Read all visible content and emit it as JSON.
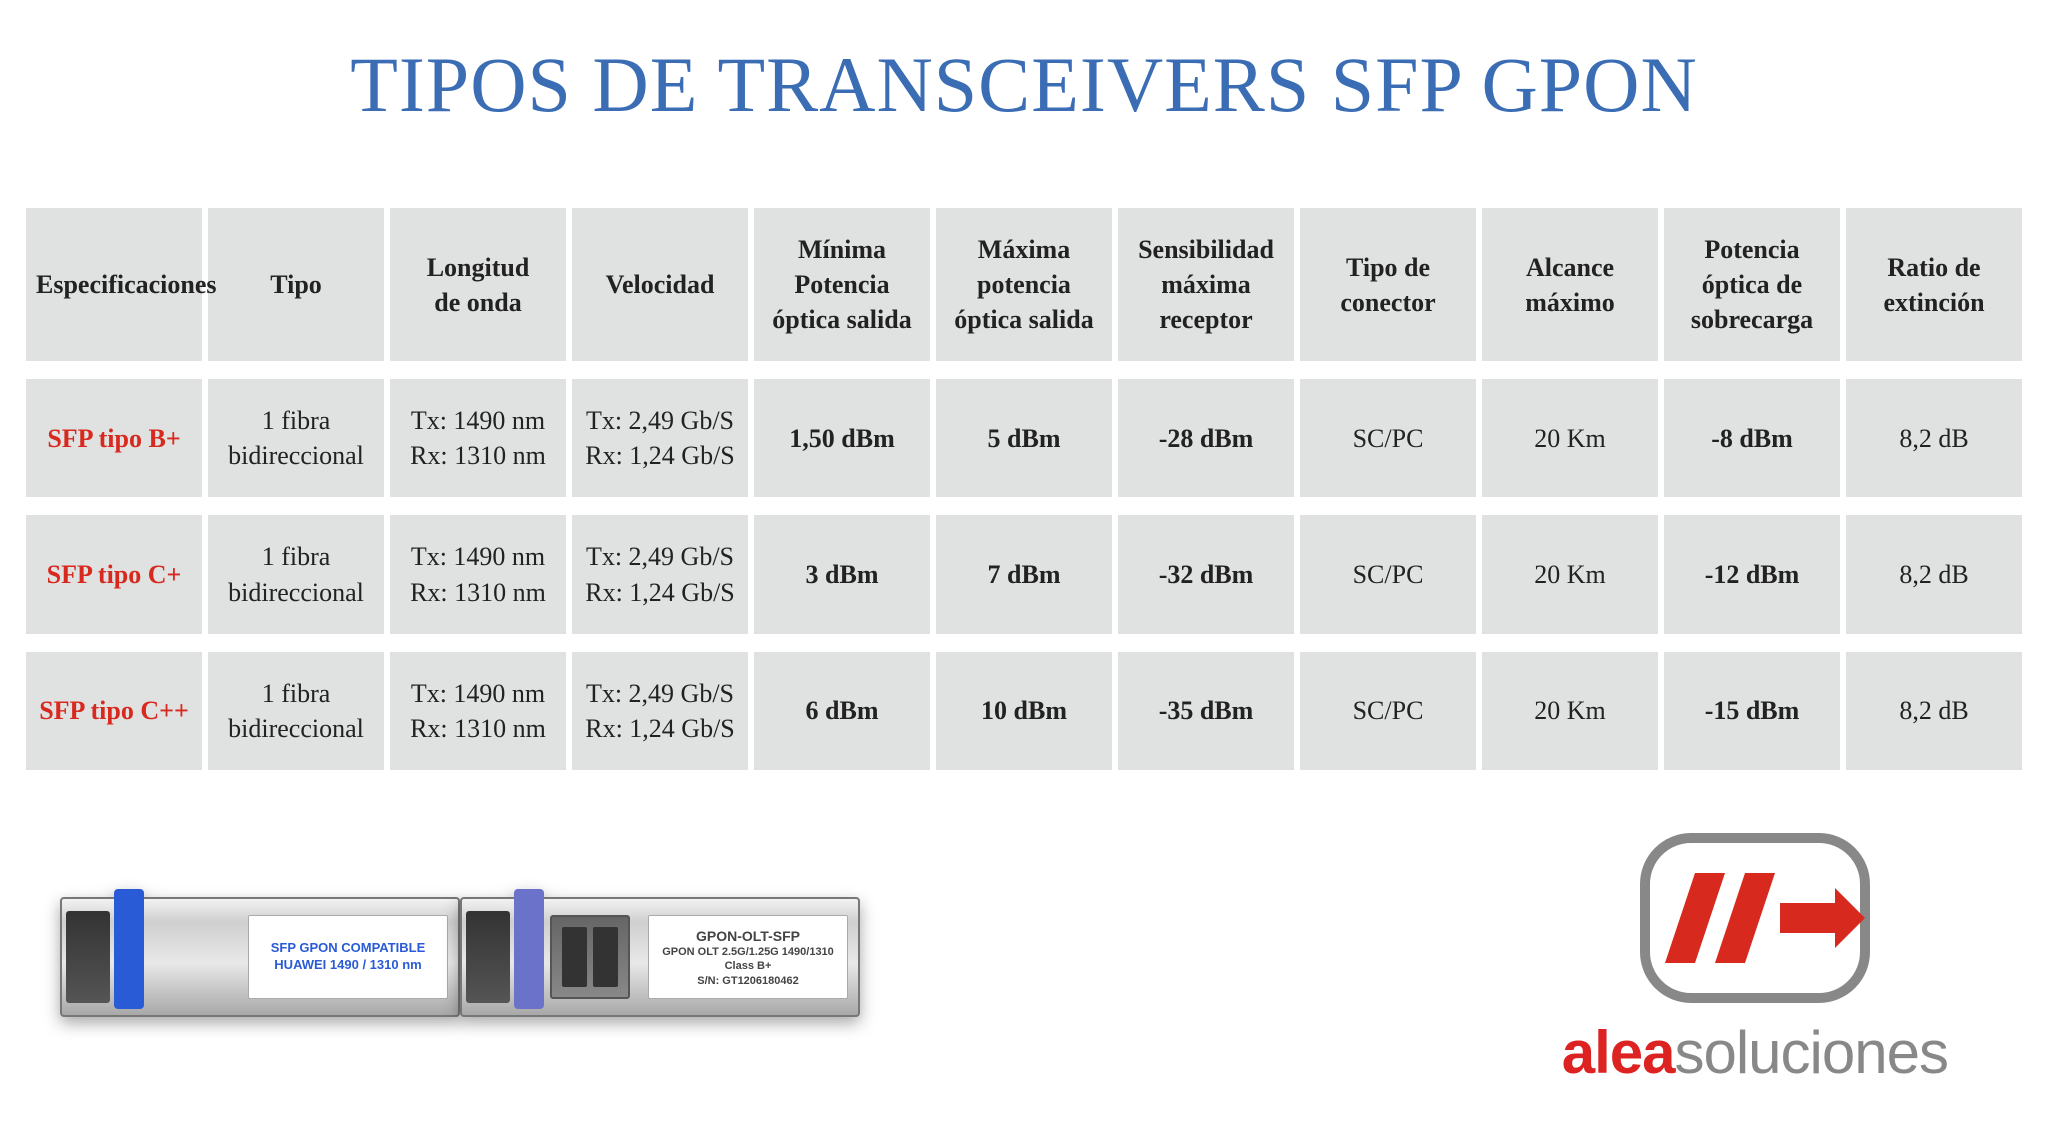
{
  "title": "TIPOS DE TRANSCEIVERS SFP GPON",
  "colors": {
    "title": "#3b6db5",
    "cell_bg": "#e0e1e1",
    "row_label": "#d8291f",
    "text": "#222222",
    "logo_red": "#d8291f",
    "logo_gray": "#888888"
  },
  "table": {
    "columns": [
      "Especificaciones",
      "Tipo",
      "Longitud\nde onda",
      "Velocidad",
      "Mínima\nPotencia\nóptica salida",
      "Máxima\npotencia\nóptica salida",
      "Sensibilidad\nmáxima\nreceptor",
      "Tipo de\nconector",
      "Alcance\nmáximo",
      "Potencia\nóptica de\nsobrecarga",
      "Ratio de\nextinción"
    ],
    "bold_cols": [
      4,
      5,
      6,
      9
    ],
    "rows": [
      {
        "label": "SFP tipo B+",
        "cells": [
          "1 fibra\nbidireccional",
          "Tx: 1490 nm\nRx: 1310 nm",
          "Tx: 2,49 Gb/S\nRx: 1,24 Gb/S",
          "1,50 dBm",
          "5 dBm",
          "-28 dBm",
          "SC/PC",
          "20 Km",
          "-8 dBm",
          "8,2 dB"
        ]
      },
      {
        "label": "SFP tipo C+",
        "cells": [
          "1 fibra\nbidireccional",
          "Tx: 1490 nm\nRx: 1310 nm",
          "Tx: 2,49 Gb/S\nRx: 1,24 Gb/S",
          "3 dBm",
          "7 dBm",
          "-32 dBm",
          "SC/PC",
          "20 Km",
          "-12 dBm",
          "8,2 dB"
        ]
      },
      {
        "label": "SFP tipo C++",
        "cells": [
          "1 fibra\nbidireccional",
          "Tx: 1490 nm\nRx: 1310 nm",
          "Tx: 2,49 Gb/S\nRx: 1,24 Gb/S",
          "6 dBm",
          "10 dBm",
          "-35 dBm",
          "SC/PC",
          "20 Km",
          "-15 dBm",
          "8,2 dB"
        ]
      }
    ]
  },
  "module1": {
    "line1": "SFP GPON COMPATIBLE",
    "line2": "HUAWEI 1490 / 1310 nm"
  },
  "module2": {
    "line1": "GPON-OLT-SFP",
    "line2": "GPON OLT 2.5G/1.25G 1490/1310 Class B+",
    "line3": "S/N: GT1206180462"
  },
  "logo": {
    "part1": "alea",
    "part2": "soluciones"
  }
}
